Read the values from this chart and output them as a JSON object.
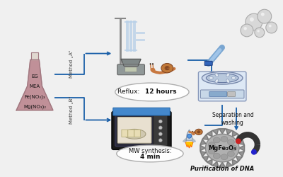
{
  "background_color": "#f0f0f0",
  "flask_chemicals": [
    "EG",
    "MEA",
    "Fe(NO₃)₃",
    "Mg(NO₃)₂"
  ],
  "flask_color": "#c8a0a8",
  "flask_fill_color": "#c09098",
  "flask_border_color": "#a07880",
  "method_a_label": "Method „A“",
  "method_b_label": "Method „B“",
  "reflux_label": "Reflux: 12 hours",
  "reflux_bold": "12 hours",
  "mw_label": "MW synthesis:",
  "mw_label2": "4 min",
  "sep_label": "Separation and\nwashing",
  "purify_label": "Purification of DNA",
  "mgfe_label": "MgFe₂O₄",
  "arrow_color": "#1a5fa8",
  "snail_body": "#c87840",
  "snail_shell": "#b06030",
  "rocket_body": "#d0d8e0",
  "flame_orange": "#ff6600",
  "flame_yellow": "#ffcc00",
  "centrifuge_body": "#d8e4f0",
  "centrifuge_lid": "#4488cc",
  "magnet_color": "#333333",
  "magnet_red": "#cc2222",
  "magnet_blue": "#2222cc",
  "particle_color": "#aaaaaa",
  "oval_fill": "#ffffff",
  "oval_edge": "#aaaaaa",
  "text_dark": "#111111",
  "text_mid": "#333333"
}
